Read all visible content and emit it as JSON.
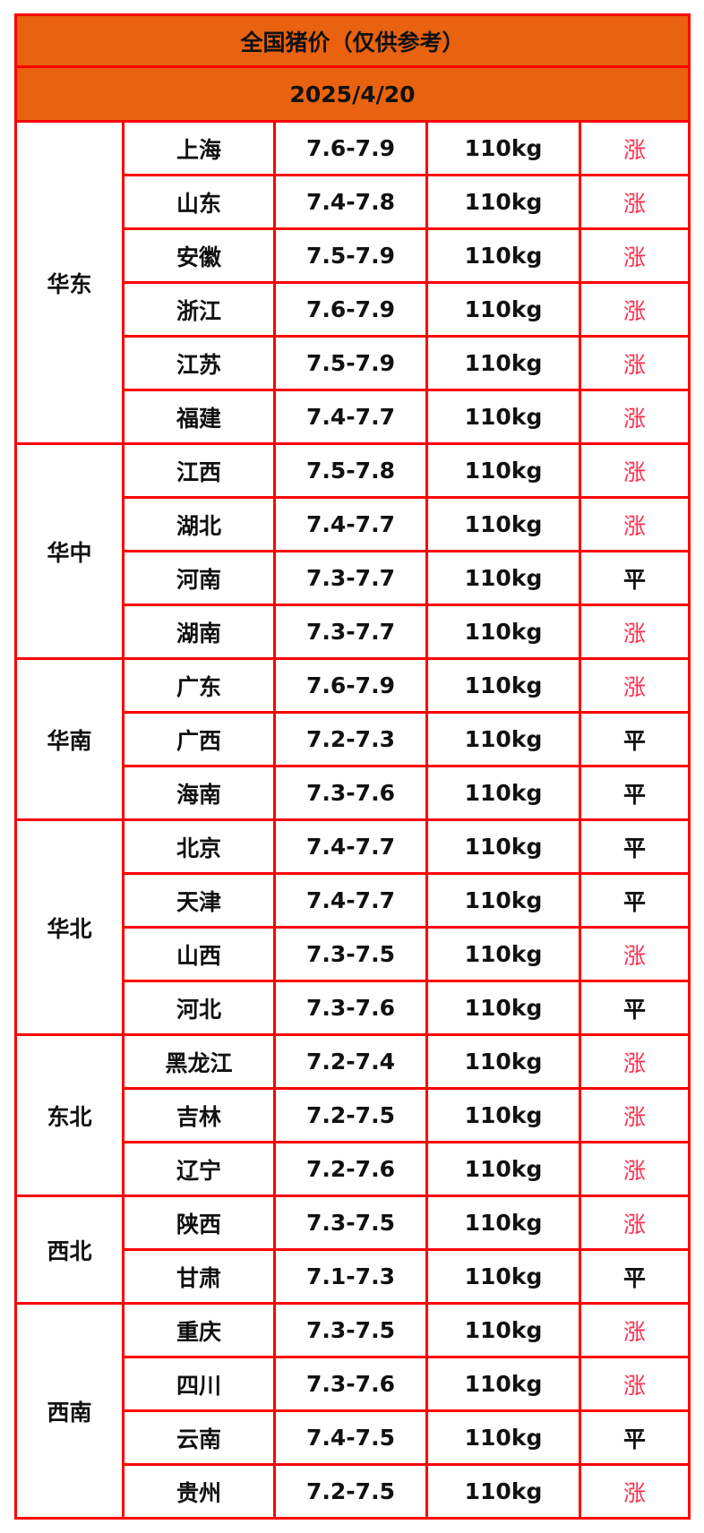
{
  "title": "全国猪价（仅供参考）",
  "date": "2025/4/20",
  "colors": {
    "header_bg": "#e8620f",
    "border": "#ff0000",
    "up": "#ff2e4d",
    "flat": "#111111"
  },
  "regions": [
    {
      "name": "华东",
      "rows": [
        {
          "province": "上海",
          "price": "7.6-7.9",
          "weight": "110kg",
          "trend": "涨"
        },
        {
          "province": "山东",
          "price": "7.4-7.8",
          "weight": "110kg",
          "trend": "涨"
        },
        {
          "province": "安徽",
          "price": "7.5-7.9",
          "weight": "110kg",
          "trend": "涨"
        },
        {
          "province": "浙江",
          "price": "7.6-7.9",
          "weight": "110kg",
          "trend": "涨"
        },
        {
          "province": "江苏",
          "price": "7.5-7.9",
          "weight": "110kg",
          "trend": "涨"
        },
        {
          "province": "福建",
          "price": "7.4-7.7",
          "weight": "110kg",
          "trend": "涨"
        }
      ]
    },
    {
      "name": "华中",
      "rows": [
        {
          "province": "江西",
          "price": "7.5-7.8",
          "weight": "110kg",
          "trend": "涨"
        },
        {
          "province": "湖北",
          "price": "7.4-7.7",
          "weight": "110kg",
          "trend": "涨"
        },
        {
          "province": "河南",
          "price": "7.3-7.7",
          "weight": "110kg",
          "trend": "平"
        },
        {
          "province": "湖南",
          "price": "7.3-7.7",
          "weight": "110kg",
          "trend": "涨"
        }
      ]
    },
    {
      "name": "华南",
      "rows": [
        {
          "province": "广东",
          "price": "7.6-7.9",
          "weight": "110kg",
          "trend": "涨"
        },
        {
          "province": "广西",
          "price": "7.2-7.3",
          "weight": "110kg",
          "trend": "平"
        },
        {
          "province": "海南",
          "price": "7.3-7.6",
          "weight": "110kg",
          "trend": "平"
        }
      ]
    },
    {
      "name": "华北",
      "rows": [
        {
          "province": "北京",
          "price": "7.4-7.7",
          "weight": "110kg",
          "trend": "平"
        },
        {
          "province": "天津",
          "price": "7.4-7.7",
          "weight": "110kg",
          "trend": "平"
        },
        {
          "province": "山西",
          "price": "7.3-7.5",
          "weight": "110kg",
          "trend": "涨"
        },
        {
          "province": "河北",
          "price": "7.3-7.6",
          "weight": "110kg",
          "trend": "平"
        }
      ]
    },
    {
      "name": "东北",
      "rows": [
        {
          "province": "黑龙江",
          "price": "7.2-7.4",
          "weight": "110kg",
          "trend": "涨"
        },
        {
          "province": "吉林",
          "price": "7.2-7.5",
          "weight": "110kg",
          "trend": "涨"
        },
        {
          "province": "辽宁",
          "price": "7.2-7.6",
          "weight": "110kg",
          "trend": "涨"
        }
      ]
    },
    {
      "name": "西北",
      "rows": [
        {
          "province": "陕西",
          "price": "7.3-7.5",
          "weight": "110kg",
          "trend": "涨"
        },
        {
          "province": "甘肃",
          "price": "7.1-7.3",
          "weight": "110kg",
          "trend": "平"
        }
      ]
    },
    {
      "name": "西南",
      "rows": [
        {
          "province": "重庆",
          "price": "7.3-7.5",
          "weight": "110kg",
          "trend": "涨"
        },
        {
          "province": "四川",
          "price": "7.3-7.6",
          "weight": "110kg",
          "trend": "涨"
        },
        {
          "province": "云南",
          "price": "7.4-7.5",
          "weight": "110kg",
          "trend": "平"
        },
        {
          "province": "贵州",
          "price": "7.2-7.5",
          "weight": "110kg",
          "trend": "涨"
        }
      ]
    }
  ]
}
